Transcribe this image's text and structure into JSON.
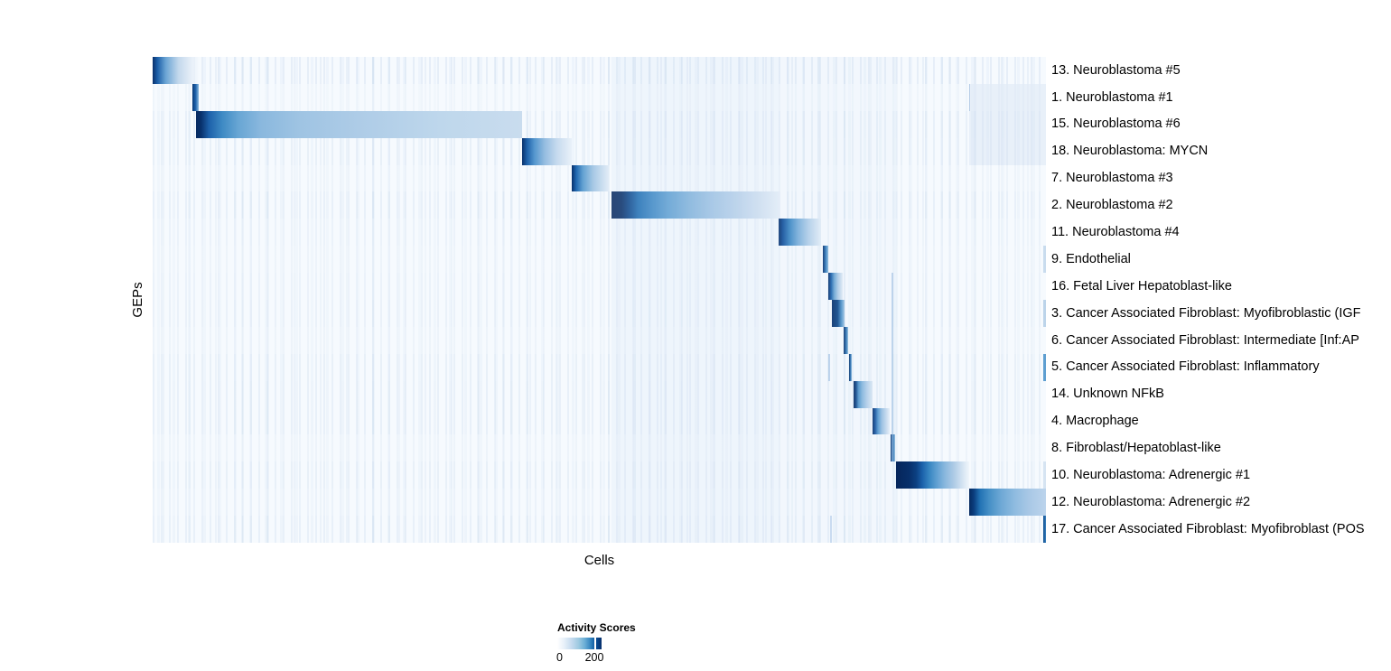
{
  "figure": {
    "xlabel": "Cells",
    "ylabel": "GEPs"
  },
  "legend": {
    "title": "Activity Scores",
    "min_label": "0",
    "max_label": "200",
    "tick_pos": 0.84,
    "gradient_stops": [
      [
        0.0,
        "#ffffff"
      ],
      [
        0.15,
        "#e8f1f9"
      ],
      [
        0.32,
        "#c6dbef"
      ],
      [
        0.48,
        "#9ecae1"
      ],
      [
        0.62,
        "#6baed6"
      ],
      [
        0.76,
        "#3182bd"
      ],
      [
        0.86,
        "#08519c"
      ],
      [
        1.0,
        "#08306b"
      ]
    ]
  },
  "chart_data": {
    "type": "heatmap",
    "title": "",
    "xlabel": "Cells",
    "ylabel": "GEPs",
    "colorbar": {
      "title": "Activity Scores",
      "min": 0,
      "max": 200,
      "palette": "Blues",
      "low_color": "#ffffff",
      "high_color": "#08306b"
    },
    "x_axis": {
      "tick_labels_shown": false
    },
    "layout_hint": "cells ordered by assigned GEP; each row shows one GEP's activity block along the diagonal",
    "rows": [
      {
        "label": "13. Neuroblastoma #5",
        "stripe_opacity": 0.55,
        "block": {
          "start": 0.0,
          "end": 0.0526,
          "stops": [
            [
              0,
              "#08306b"
            ],
            [
              0.1,
              "#1b5ea8"
            ],
            [
              0.28,
              "#6ba5d4"
            ],
            [
              0.55,
              "#c3d8ec"
            ],
            [
              0.85,
              "#eaf1f9"
            ],
            [
              1,
              "rgba(246,250,254,0)"
            ]
          ]
        }
      },
      {
        "label": "1. Neuroblastoma #1",
        "stripe_opacity": 0.25,
        "block": {
          "start": 0.0445,
          "end": 0.0511,
          "stops": [
            [
              0,
              "#0a3a78"
            ],
            [
              0.5,
              "#1d61aa"
            ],
            [
              1,
              "#88b8de"
            ]
          ]
        }
      },
      {
        "label": "15. Neuroblastoma #6",
        "stripe_opacity": 0.5,
        "block": {
          "start": 0.049,
          "end": 0.4136,
          "stops": [
            [
              0,
              "#062a60"
            ],
            [
              0.015,
              "#08306b"
            ],
            [
              0.04,
              "#1d61aa"
            ],
            [
              0.08,
              "#3e8ac4"
            ],
            [
              0.13,
              "#68a6d4"
            ],
            [
              0.2,
              "#8ab8de"
            ],
            [
              0.32,
              "#9fc4e3"
            ],
            [
              0.5,
              "#aecce7"
            ],
            [
              0.75,
              "#bed7ec"
            ],
            [
              1,
              "#c9dcee"
            ]
          ]
        }
      },
      {
        "label": "18. Neuroblastoma: MYCN",
        "stripe_opacity": 0.45,
        "block": {
          "start": 0.4136,
          "end": 0.4692,
          "stops": [
            [
              0,
              "#08306b"
            ],
            [
              0.1,
              "#1d61aa"
            ],
            [
              0.25,
              "#5597ce"
            ],
            [
              0.45,
              "#93bce0"
            ],
            [
              0.7,
              "#c6daee"
            ],
            [
              1,
              "#e9f1f9"
            ]
          ]
        }
      },
      {
        "label": "7. Neuroblastoma #3",
        "stripe_opacity": 0.3,
        "block": {
          "start": 0.4687,
          "end": 0.5106,
          "stops": [
            [
              0,
              "#08306b"
            ],
            [
              0.12,
              "#2068b0"
            ],
            [
              0.3,
              "#63a2d2"
            ],
            [
              0.58,
              "#a8c9e5"
            ],
            [
              1,
              "#e2ecf7"
            ]
          ]
        }
      },
      {
        "label": "2. Neuroblastoma #2",
        "stripe_opacity": 0.5,
        "block": {
          "start": 0.5136,
          "end": 0.7018,
          "stops": [
            [
              0,
              "#05255a"
            ],
            [
              0.06,
              "#062c64"
            ],
            [
              0.1,
              "#0b4486"
            ],
            [
              0.16,
              "#1f6eb2"
            ],
            [
              0.24,
              "#3d88c4"
            ],
            [
              0.34,
              "#61a1d2"
            ],
            [
              0.46,
              "#83b4db"
            ],
            [
              0.6,
              "#a2c5e4"
            ],
            [
              0.76,
              "#bdd4eb"
            ],
            [
              0.9,
              "#d6e4f2"
            ],
            [
              1,
              "#e9f1f9"
            ]
          ]
        }
      },
      {
        "label": "11. Neuroblastoma #4",
        "stripe_opacity": 0.35,
        "block": {
          "start": 0.7008,
          "end": 0.7478,
          "stops": [
            [
              0,
              "#08306b"
            ],
            [
              0.1,
              "#14529c"
            ],
            [
              0.26,
              "#3d88c4"
            ],
            [
              0.46,
              "#7bafda"
            ],
            [
              0.7,
              "#b3cfe9"
            ],
            [
              1,
              "#e4eef7"
            ]
          ]
        }
      },
      {
        "label": "9. Endothelial",
        "stripe_opacity": 0.3,
        "edge_accent": "#c9dcee",
        "block": {
          "start": 0.7499,
          "end": 0.7563,
          "stops": [
            [
              0,
              "#08306b"
            ],
            [
              0.5,
              "#2e76b8"
            ],
            [
              1,
              "#8ebede"
            ]
          ]
        }
      },
      {
        "label": "16. Fetal Liver Hepatoblast-like",
        "stripe_opacity": 0.35,
        "block": {
          "start": 0.7559,
          "end": 0.7725,
          "stops": [
            [
              0,
              "#08306b"
            ],
            [
              0.2,
              "#1d61aa"
            ],
            [
              0.42,
              "#6ea8d4"
            ],
            [
              0.68,
              "#b0cce7"
            ],
            [
              1,
              "#e4edf7"
            ]
          ]
        }
      },
      {
        "label": "3. Cancer Associated Fibroblast: Myofibroblastic (IGF",
        "stripe_opacity": 0.4,
        "edge_accent": "#bcd4ea",
        "block": {
          "start": 0.7604,
          "end": 0.7745,
          "stops": [
            [
              0,
              "#072f6a"
            ],
            [
              0.45,
              "#0e4788"
            ],
            [
              0.75,
              "#4f93c9"
            ],
            [
              1,
              "#a6c8e4"
            ]
          ]
        }
      },
      {
        "label": "6. Cancer Associated Fibroblast: Intermediate [Inf:AP",
        "stripe_opacity": 0.3,
        "block": {
          "start": 0.774,
          "end": 0.7786,
          "stops": [
            [
              0,
              "#08306b"
            ],
            [
              0.6,
              "#2e76b8"
            ],
            [
              1,
              "#9cc2e0"
            ]
          ]
        }
      },
      {
        "label": "5. Cancer Associated Fibroblast: Inflammatory",
        "stripe_opacity": 0.45,
        "edge_accent": "#5e9fd1",
        "block": {
          "start": 0.7791,
          "end": 0.7831,
          "stops": [
            [
              0,
              "#08306b"
            ],
            [
              0.6,
              "#2e76b8"
            ],
            [
              1,
              "#9cc2e0"
            ]
          ]
        }
      },
      {
        "label": "14. Unknown NFkB",
        "stripe_opacity": 0.5,
        "block": {
          "start": 0.7851,
          "end": 0.8059,
          "stops": [
            [
              0,
              "#062a60"
            ],
            [
              0.12,
              "#0d4486"
            ],
            [
              0.26,
              "#4f93c9"
            ],
            [
              0.46,
              "#88b8de"
            ],
            [
              0.7,
              "#b3cfe9"
            ],
            [
              1,
              "#dde9f4"
            ]
          ]
        }
      },
      {
        "label": "4. Macrophage",
        "stripe_opacity": 0.5,
        "block": {
          "start": 0.8054,
          "end": 0.8251,
          "stops": [
            [
              0,
              "#08306b"
            ],
            [
              0.15,
              "#16549e"
            ],
            [
              0.32,
              "#5597ce"
            ],
            [
              0.55,
              "#9ac1e2"
            ],
            [
              0.8,
              "#c6daee"
            ],
            [
              1,
              "#e9f1f9"
            ]
          ]
        }
      },
      {
        "label": "8. Fibroblast/Hepatoblast-like",
        "stripe_opacity": 0.3,
        "block": {
          "start": 0.8261,
          "end": 0.8311,
          "stops": [
            [
              0,
              "#08306b"
            ],
            [
              0.6,
              "#2e76b8"
            ],
            [
              1,
              "#9cc2e0"
            ]
          ]
        }
      },
      {
        "label": "10. Neuroblastoma: Adrenergic #1",
        "stripe_opacity": 0.45,
        "edge_accent": "#d6e4f2",
        "block": {
          "start": 0.8322,
          "end": 0.9141,
          "stops": [
            [
              0,
              "#05255a"
            ],
            [
              0.18,
              "#072f6a"
            ],
            [
              0.28,
              "#0c4183"
            ],
            [
              0.36,
              "#1b61ab"
            ],
            [
              0.45,
              "#3685c1"
            ],
            [
              0.55,
              "#5d9ed1"
            ],
            [
              0.66,
              "#86b6dd"
            ],
            [
              0.78,
              "#abc9e5"
            ],
            [
              0.9,
              "#d2e2f1"
            ],
            [
              1,
              "#f0f6fb"
            ]
          ]
        }
      },
      {
        "label": "12. Neuroblastoma: Adrenergic #2",
        "stripe_opacity": 0.35,
        "block": {
          "start": 0.9136,
          "end": 1.0,
          "stops": [
            [
              0,
              "#062a60"
            ],
            [
              0.06,
              "#0a3d7e"
            ],
            [
              0.14,
              "#2272b4"
            ],
            [
              0.26,
              "#4690c6"
            ],
            [
              0.42,
              "#6fa9d6"
            ],
            [
              0.6,
              "#90bce0"
            ],
            [
              0.78,
              "#a9c8e6"
            ],
            [
              1,
              "#bcd4ec"
            ]
          ]
        }
      },
      {
        "label": "17. Cancer Associated Fibroblast: Myofibroblast (POS",
        "stripe_opacity": 0.5,
        "block": {
          "start": 0.9965,
          "end": 1.0,
          "stops": [
            [
              0,
              "#0d4d8f"
            ],
            [
              1,
              "#3a80be"
            ]
          ]
        }
      }
    ],
    "region_tints": [
      {
        "x0": 0.5136,
        "x1": 0.7018,
        "row0": 0,
        "row1": 18,
        "color": "rgba(205,222,242,0.18)"
      },
      {
        "x0": 0.7018,
        "x1": 0.8322,
        "row0": 0,
        "row1": 18,
        "color": "rgba(210,226,244,0.10)"
      },
      {
        "x0": 0.9136,
        "x1": 1.0,
        "row0": 1,
        "row1": 4,
        "color": "rgba(205,222,242,0.35)"
      }
    ],
    "accent_stripes": [
      {
        "x": 0.8281,
        "w": 2.5,
        "row0": 8,
        "row1": 15,
        "color": "rgba(150,185,222,0.55)"
      },
      {
        "x": 0.7574,
        "w": 2.0,
        "row0": 11,
        "row1": 12,
        "color": "rgba(140,178,220,0.50)"
      },
      {
        "x": 0.7589,
        "w": 2.0,
        "row0": 17,
        "row1": 18,
        "color": "rgba(160,192,228,0.50)"
      },
      {
        "x": 0.9146,
        "w": 1.5,
        "row0": 1,
        "row1": 2,
        "color": "rgba(120,160,208,0.45)"
      }
    ]
  }
}
